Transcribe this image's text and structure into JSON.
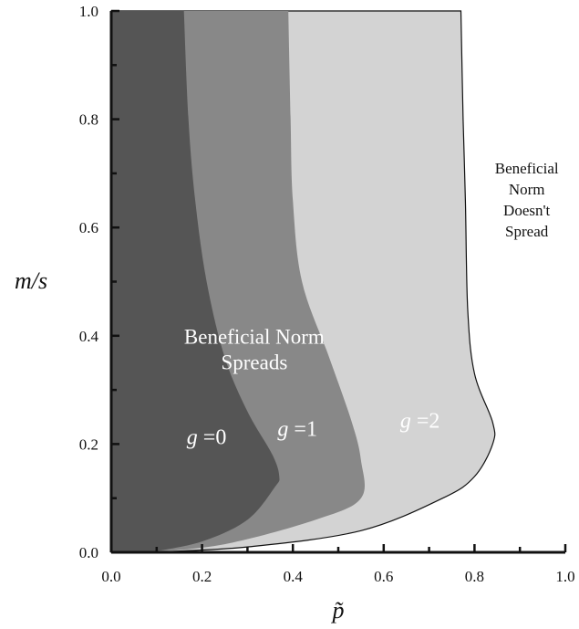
{
  "chart_data": {
    "type": "area",
    "xlabel": "p̃",
    "ylabel": "m/s",
    "xlim": [
      0.0,
      1.0
    ],
    "ylim": [
      0.0,
      1.0
    ],
    "x_ticks": [
      "0.0",
      "0.2",
      "0.4",
      "0.6",
      "0.8",
      "1.0"
    ],
    "y_ticks": [
      "0.0",
      "0.2",
      "0.4",
      "0.6",
      "0.8",
      "1.0"
    ],
    "grid": false,
    "legend": "none",
    "regions": [
      {
        "name": "g =0",
        "g_value": "0",
        "color": "#555555",
        "label_color": "#ffffff",
        "label_at": [
          0.21,
          0.2
        ],
        "boundary": [
          [
            0.085,
            0.0
          ],
          [
            0.2,
            0.02
          ],
          [
            0.3,
            0.06
          ],
          [
            0.36,
            0.12
          ],
          [
            0.37,
            0.14
          ],
          [
            0.355,
            0.18
          ],
          [
            0.3,
            0.26
          ],
          [
            0.25,
            0.36
          ],
          [
            0.21,
            0.5
          ],
          [
            0.185,
            0.65
          ],
          [
            0.17,
            0.8
          ],
          [
            0.16,
            1.0
          ]
        ]
      },
      {
        "name": "g =1",
        "g_value": "1",
        "color": "#888888",
        "label_color": "#ffffff",
        "label_at": [
          0.41,
          0.215
        ],
        "boundary": [
          [
            0.085,
            0.0
          ],
          [
            0.25,
            0.015
          ],
          [
            0.45,
            0.06
          ],
          [
            0.55,
            0.1
          ],
          [
            0.55,
            0.17
          ],
          [
            0.53,
            0.24
          ],
          [
            0.48,
            0.36
          ],
          [
            0.42,
            0.5
          ],
          [
            0.4,
            0.65
          ],
          [
            0.395,
            0.8
          ],
          [
            0.39,
            1.0
          ]
        ]
      },
      {
        "name": "g =2",
        "g_value": "2",
        "color": "#d3d3d3",
        "label_color": "#ffffff",
        "label_at": [
          0.68,
          0.23
        ],
        "boundary": [
          [
            0.085,
            0.0
          ],
          [
            0.3,
            0.01
          ],
          [
            0.55,
            0.04
          ],
          [
            0.73,
            0.1
          ],
          [
            0.8,
            0.14
          ],
          [
            0.84,
            0.2
          ],
          [
            0.84,
            0.24
          ],
          [
            0.8,
            0.33
          ],
          [
            0.785,
            0.45
          ],
          [
            0.78,
            0.65
          ],
          [
            0.775,
            0.8
          ],
          [
            0.77,
            1.0
          ]
        ]
      }
    ],
    "annotations": [
      {
        "lines": [
          "Beneficial Norm",
          "Spreads"
        ],
        "at": [
          0.315,
          0.385
        ],
        "color": "#ffffff"
      },
      {
        "lines": [
          "Beneficial",
          "Norm",
          "Doesn't",
          "Spread"
        ],
        "at": [
          0.915,
          0.7
        ],
        "color": "#111111"
      }
    ]
  }
}
